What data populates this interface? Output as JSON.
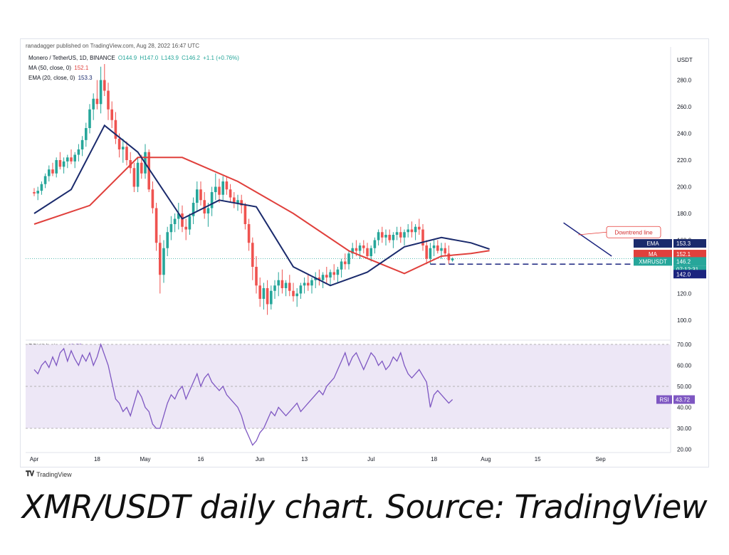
{
  "publisher": "ranadagger published on TradingView.com, Aug 28, 2022 16:47 UTC",
  "symbol_line": {
    "name": "Monero / TetherUS, 1D, BINANCE",
    "open": "O144.9",
    "high": "H147.0",
    "low": "L143.9",
    "close": "C146.2",
    "change": "+1.1 (+0.76%)"
  },
  "ma_line": {
    "label": "MA (50, close, 0)",
    "value": "152.1"
  },
  "ema_line": {
    "label": "EMA (20, close, 0)",
    "value": "153.3"
  },
  "rsi_line": {
    "label": "RSI (14, close)",
    "value": "43.72"
  },
  "logo_text": "TradingView",
  "caption": "XMR/USDT daily chart. Source: TradingView",
  "colors": {
    "up": "#26a69a",
    "down": "#ef5350",
    "ema": "#1a2a6c",
    "ma": "#e0403c",
    "rsi": "#7e57c2",
    "rsi_band": "#ede7f6",
    "support": "#1a237e",
    "trendline": "#1a237e",
    "annotation": "#e53935"
  },
  "chart_data": [
    {
      "type": "candlestick",
      "title": "Monero / TetherUS, 1D, BINANCE",
      "ylabel": "USDT",
      "ylim": [
        88,
        295
      ],
      "y_ticks": [
        "100.0",
        "120.0",
        "140.0",
        "160.0",
        "180.0",
        "200.0",
        "220.0",
        "240.0",
        "260.0",
        "280.0"
      ],
      "x_ticks": [
        {
          "label": "Apr",
          "day": 0
        },
        {
          "label": "18",
          "day": 17
        },
        {
          "label": "May",
          "day": 30
        },
        {
          "label": "16",
          "day": 45
        },
        {
          "label": "Jun",
          "day": 61
        },
        {
          "label": "13",
          "day": 73
        },
        {
          "label": "Jul",
          "day": 91
        },
        {
          "label": "18",
          "day": 108
        },
        {
          "label": "Aug",
          "day": 122
        },
        {
          "label": "15",
          "day": 136
        },
        {
          "label": "Sep",
          "day": 153
        }
      ],
      "ohlc": [
        [
          196,
          199,
          193,
          195
        ],
        [
          195,
          200,
          190,
          197
        ],
        [
          197,
          204,
          194,
          202
        ],
        [
          202,
          210,
          199,
          208
        ],
        [
          208,
          216,
          204,
          213
        ],
        [
          213,
          218,
          208,
          210
        ],
        [
          210,
          222,
          207,
          220
        ],
        [
          220,
          226,
          213,
          215
        ],
        [
          215,
          222,
          210,
          219
        ],
        [
          219,
          224,
          214,
          222
        ],
        [
          222,
          228,
          217,
          219
        ],
        [
          219,
          226,
          214,
          224
        ],
        [
          224,
          232,
          219,
          228
        ],
        [
          228,
          238,
          223,
          235
        ],
        [
          235,
          248,
          230,
          244
        ],
        [
          244,
          262,
          240,
          258
        ],
        [
          258,
          270,
          250,
          266
        ],
        [
          266,
          280,
          258,
          262
        ],
        [
          262,
          290,
          255,
          280
        ],
        [
          280,
          292,
          268,
          272
        ],
        [
          272,
          278,
          250,
          258
        ],
        [
          258,
          264,
          244,
          250
        ],
        [
          250,
          256,
          232,
          236
        ],
        [
          236,
          240,
          222,
          228
        ],
        [
          228,
          236,
          218,
          230
        ],
        [
          230,
          234,
          216,
          220
        ],
        [
          220,
          226,
          210,
          214
        ],
        [
          214,
          218,
          196,
          200
        ],
        [
          200,
          222,
          196,
          218
        ],
        [
          218,
          224,
          206,
          210
        ],
        [
          210,
          232,
          206,
          226
        ],
        [
          226,
          228,
          196,
          198
        ],
        [
          198,
          204,
          180,
          184
        ],
        [
          184,
          188,
          152,
          158
        ],
        [
          158,
          164,
          120,
          134
        ],
        [
          134,
          160,
          128,
          154
        ],
        [
          154,
          170,
          148,
          166
        ],
        [
          166,
          178,
          160,
          172
        ],
        [
          172,
          180,
          166,
          176
        ],
        [
          176,
          188,
          168,
          180
        ],
        [
          180,
          186,
          166,
          170
        ],
        [
          170,
          176,
          160,
          168
        ],
        [
          168,
          180,
          164,
          178
        ],
        [
          178,
          192,
          172,
          188
        ],
        [
          188,
          204,
          182,
          198
        ],
        [
          198,
          204,
          186,
          190
        ],
        [
          190,
          196,
          176,
          180
        ],
        [
          180,
          188,
          170,
          184
        ],
        [
          184,
          200,
          178,
          196
        ],
        [
          196,
          210,
          190,
          200
        ],
        [
          200,
          206,
          188,
          194
        ],
        [
          194,
          208,
          190,
          204
        ],
        [
          204,
          208,
          194,
          198
        ],
        [
          198,
          202,
          188,
          192
        ],
        [
          192,
          196,
          184,
          188
        ],
        [
          188,
          194,
          182,
          190
        ],
        [
          190,
          194,
          180,
          186
        ],
        [
          186,
          188,
          168,
          172
        ],
        [
          172,
          176,
          152,
          158
        ],
        [
          158,
          162,
          130,
          140
        ],
        [
          140,
          148,
          120,
          126
        ],
        [
          126,
          132,
          110,
          116
        ],
        [
          116,
          128,
          108,
          124
        ],
        [
          124,
          130,
          104,
          112
        ],
        [
          112,
          126,
          108,
          122
        ],
        [
          122,
          130,
          116,
          126
        ],
        [
          126,
          136,
          118,
          130
        ],
        [
          130,
          138,
          120,
          124
        ],
        [
          124,
          130,
          118,
          128
        ],
        [
          128,
          134,
          118,
          122
        ],
        [
          122,
          128,
          114,
          118
        ],
        [
          118,
          124,
          110,
          120
        ],
        [
          120,
          128,
          116,
          126
        ],
        [
          126,
          132,
          120,
          128
        ],
        [
          128,
          134,
          122,
          126
        ],
        [
          126,
          132,
          120,
          130
        ],
        [
          130,
          136,
          124,
          132
        ],
        [
          132,
          138,
          126,
          130
        ],
        [
          130,
          136,
          124,
          134
        ],
        [
          134,
          140,
          128,
          132
        ],
        [
          132,
          138,
          126,
          136
        ],
        [
          136,
          142,
          130,
          134
        ],
        [
          134,
          140,
          128,
          138
        ],
        [
          138,
          146,
          132,
          144
        ],
        [
          144,
          150,
          138,
          142
        ],
        [
          142,
          152,
          138,
          150
        ],
        [
          150,
          158,
          146,
          154
        ],
        [
          154,
          160,
          148,
          152
        ],
        [
          152,
          158,
          146,
          156
        ],
        [
          156,
          160,
          150,
          154
        ],
        [
          154,
          158,
          146,
          148
        ],
        [
          148,
          156,
          144,
          154
        ],
        [
          154,
          162,
          150,
          160
        ],
        [
          160,
          168,
          156,
          166
        ],
        [
          166,
          170,
          158,
          162
        ],
        [
          162,
          168,
          156,
          164
        ],
        [
          164,
          168,
          158,
          160
        ],
        [
          160,
          166,
          154,
          164
        ],
        [
          164,
          170,
          160,
          166
        ],
        [
          166,
          170,
          158,
          162
        ],
        [
          162,
          168,
          156,
          166
        ],
        [
          166,
          172,
          162,
          168
        ],
        [
          168,
          174,
          162,
          166
        ],
        [
          166,
          172,
          160,
          170
        ],
        [
          170,
          176,
          164,
          168
        ],
        [
          168,
          172,
          152,
          156
        ],
        [
          156,
          160,
          142,
          146
        ],
        [
          146,
          158,
          142,
          154
        ],
        [
          154,
          160,
          148,
          156
        ],
        [
          156,
          160,
          150,
          152
        ],
        [
          152,
          158,
          146,
          154
        ],
        [
          154,
          158,
          148,
          150
        ],
        [
          150,
          156,
          142,
          145
        ],
        [
          144.9,
          147,
          143.9,
          146.2
        ]
      ],
      "ema20": [
        [
          0,
          180
        ],
        [
          10,
          198
        ],
        [
          19,
          246
        ],
        [
          28,
          226
        ],
        [
          40,
          176
        ],
        [
          50,
          190
        ],
        [
          60,
          185
        ],
        [
          70,
          140
        ],
        [
          80,
          126
        ],
        [
          90,
          136
        ],
        [
          100,
          155
        ],
        [
          110,
          162
        ],
        [
          118,
          158
        ],
        [
          123,
          153.3
        ]
      ],
      "ma50": [
        [
          0,
          172
        ],
        [
          15,
          186
        ],
        [
          28,
          222
        ],
        [
          40,
          222
        ],
        [
          55,
          204
        ],
        [
          70,
          180
        ],
        [
          85,
          152
        ],
        [
          100,
          135
        ],
        [
          110,
          148
        ],
        [
          118,
          150
        ],
        [
          123,
          152.1
        ]
      ],
      "support_level": 142.0,
      "last_price": 146.2,
      "countdown": "07:12:31",
      "price_labels": [
        {
          "name": "EMA",
          "value": "153.3"
        },
        {
          "name": "MA",
          "value": "152.1"
        },
        {
          "name": "XMRUSDT",
          "value": "146.2"
        },
        {
          "name": "",
          "value": "142.0"
        }
      ],
      "annotations": [
        {
          "text": "Downtrend line"
        }
      ]
    },
    {
      "type": "line",
      "title": "RSI (14, close)",
      "ylim": [
        18,
        72
      ],
      "y_ticks": [
        "20.00",
        "30.00",
        "40.00",
        "50.00",
        "60.00",
        "70.00"
      ],
      "bands": [
        30,
        50,
        70
      ],
      "last_value": "43.72",
      "series": [
        {
          "name": "RSI",
          "values": [
            58,
            56,
            60,
            62,
            59,
            64,
            60,
            66,
            68,
            62,
            67,
            63,
            60,
            65,
            62,
            66,
            60,
            64,
            70,
            65,
            60,
            52,
            44,
            42,
            38,
            40,
            36,
            42,
            48,
            45,
            40,
            38,
            32,
            30,
            30,
            36,
            42,
            46,
            44,
            48,
            50,
            44,
            48,
            52,
            56,
            50,
            54,
            56,
            52,
            50,
            48,
            50,
            46,
            44,
            42,
            40,
            36,
            30,
            26,
            22,
            24,
            28,
            30,
            34,
            38,
            36,
            40,
            38,
            36,
            38,
            40,
            42,
            38,
            40,
            42,
            44,
            46,
            48,
            46,
            50,
            52,
            54,
            58,
            62,
            66,
            60,
            64,
            66,
            62,
            58,
            62,
            66,
            64,
            60,
            62,
            58,
            60,
            64,
            62,
            66,
            60,
            56,
            54,
            56,
            58,
            55,
            52,
            40,
            46,
            48,
            46,
            44,
            42,
            43.72
          ]
        }
      ]
    }
  ]
}
